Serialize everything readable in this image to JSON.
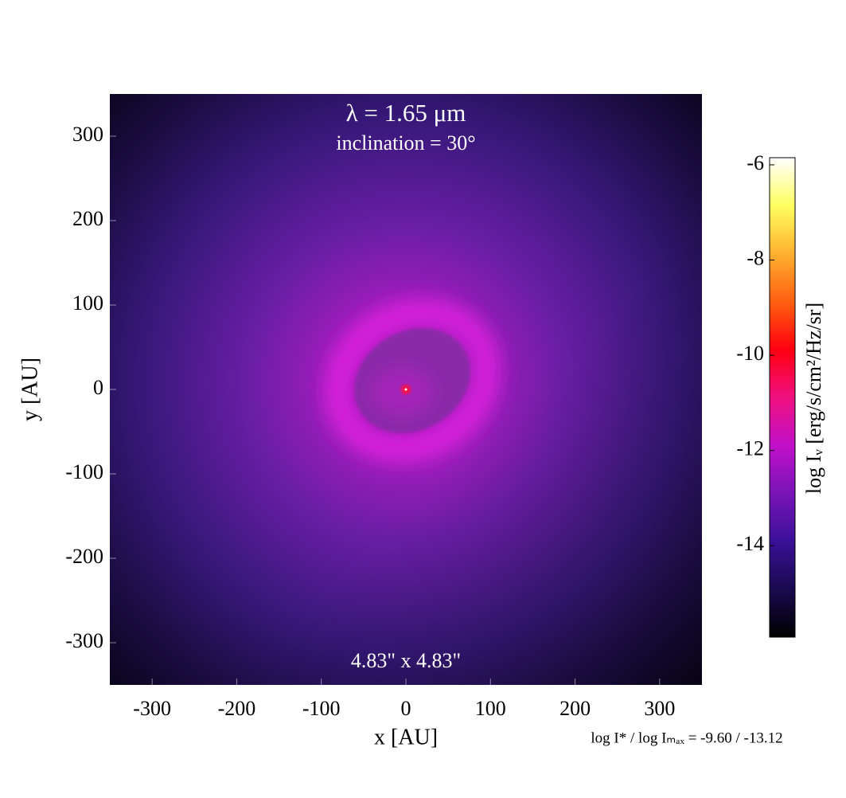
{
  "chart_data": {
    "type": "image",
    "title": "λ = 1.65 μm",
    "subtitle": "inclination = 30°",
    "annotation": "4.83\" x 4.83\"",
    "footnote": "log I* / log Iₘₐₓ = -9.60 / -13.12",
    "xlabel": "x [AU]",
    "ylabel": "y [AU]",
    "xlim": [
      -350,
      350
    ],
    "ylim": [
      -350,
      350
    ],
    "xticks": [
      -300,
      -200,
      -100,
      0,
      100,
      200,
      300
    ],
    "yticks": [
      -300,
      -200,
      -100,
      0,
      100,
      200,
      300
    ],
    "colorbar": {
      "label": "log Iᵥ [erg/s/cm²/Hz/sr]",
      "lim": [
        -15.92,
        -5.85
      ],
      "ticks": [
        -6,
        -8,
        -10,
        -12,
        -14
      ]
    }
  }
}
